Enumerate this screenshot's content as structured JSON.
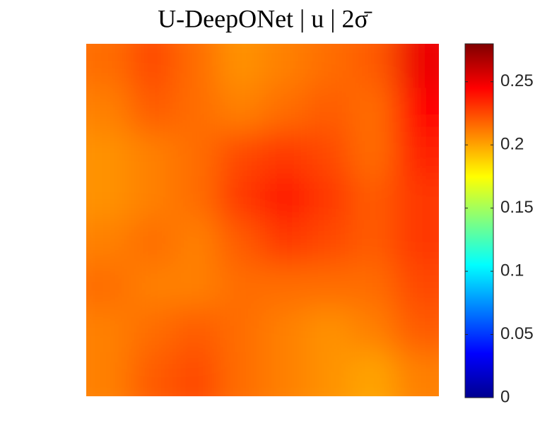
{
  "chart_data": {
    "type": "contour",
    "title": "U-DeepONet | u | 2σ̄",
    "colormap": "jet",
    "clim": [
      0,
      0.28
    ],
    "cticks": [
      0,
      0.05,
      0.1,
      0.15,
      0.2,
      0.25
    ],
    "z": [
      [
        0.215,
        0.225,
        0.215,
        0.205,
        0.21,
        0.215,
        0.22,
        0.25
      ],
      [
        0.21,
        0.22,
        0.215,
        0.21,
        0.215,
        0.22,
        0.215,
        0.245
      ],
      [
        0.205,
        0.21,
        0.215,
        0.225,
        0.23,
        0.225,
        0.215,
        0.235
      ],
      [
        0.205,
        0.21,
        0.215,
        0.23,
        0.24,
        0.23,
        0.22,
        0.23
      ],
      [
        0.21,
        0.215,
        0.21,
        0.22,
        0.23,
        0.225,
        0.22,
        0.23
      ],
      [
        0.215,
        0.21,
        0.21,
        0.215,
        0.215,
        0.215,
        0.215,
        0.225
      ],
      [
        0.21,
        0.215,
        0.22,
        0.215,
        0.21,
        0.205,
        0.21,
        0.22
      ],
      [
        0.21,
        0.22,
        0.225,
        0.215,
        0.21,
        0.205,
        0.2,
        0.21
      ]
    ]
  }
}
